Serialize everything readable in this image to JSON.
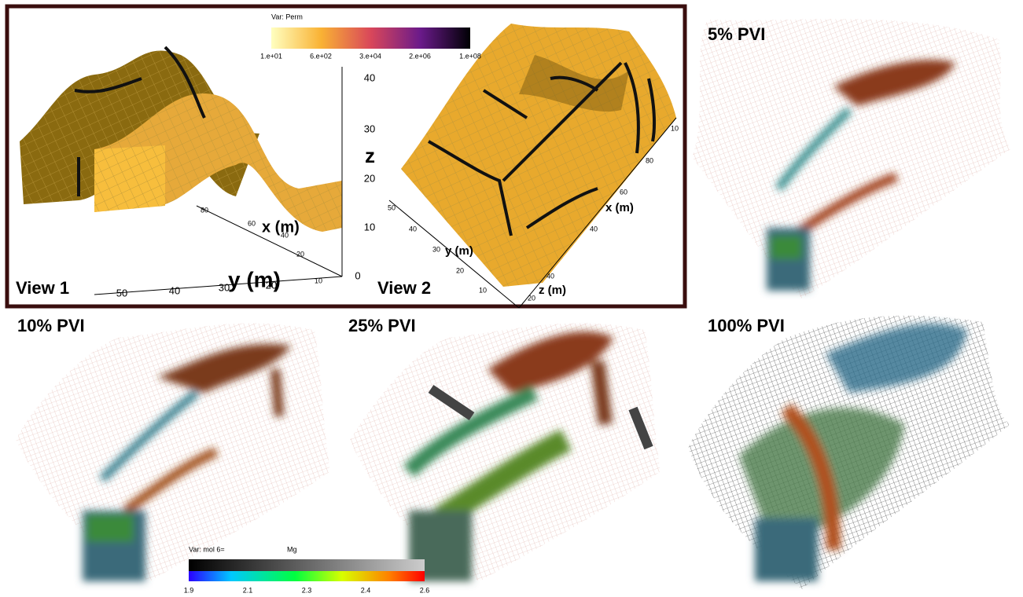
{
  "figure": {
    "top_panel": {
      "colorbar": {
        "title": "Var: Perm",
        "ticks": [
          "1.e+01",
          "6.e+02",
          "3.e+04",
          "2.e+06",
          "1.e+08"
        ]
      },
      "view1": {
        "label": "View 1",
        "z_label": "z",
        "z_ticks": [
          "40",
          "30",
          "20",
          "10",
          "0"
        ],
        "x_label": "x (m)",
        "x_ticks": [
          "80",
          "60",
          "40",
          "20",
          "10"
        ],
        "y_label": "y (m)",
        "y_ticks": [
          "50",
          "40",
          "30",
          "20"
        ]
      },
      "view2": {
        "label": "View 2",
        "x_label": "x (m)",
        "x_ticks": [
          "10",
          "80",
          "60",
          "40"
        ],
        "y_label": "y (m)",
        "y_ticks": [
          "50",
          "40",
          "30",
          "20",
          "10"
        ],
        "z_label": "z (m)",
        "z_ticks": [
          "40",
          "20"
        ]
      }
    },
    "panels": [
      {
        "label": "5% PVI"
      },
      {
        "label": "10% PVI"
      },
      {
        "label": "25% PVI"
      },
      {
        "label": "100% PVI"
      }
    ],
    "colorbar": {
      "title": "Var: mol 6=",
      "species": "Mg",
      "ticks": [
        "1.9",
        "2.1",
        "2.3",
        "2.4",
        "2.6"
      ]
    }
  }
}
